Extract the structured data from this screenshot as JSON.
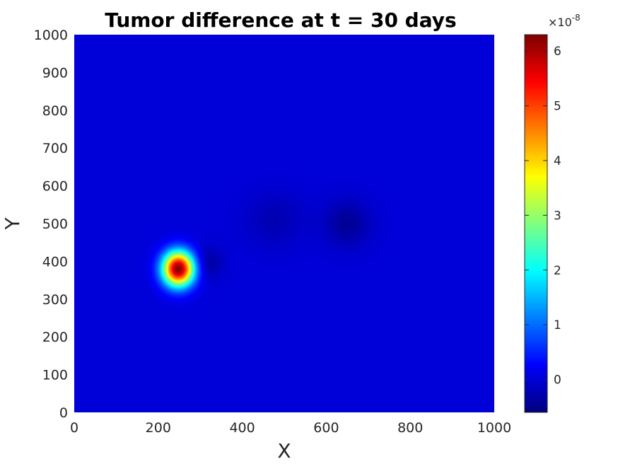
{
  "chart_data": {
    "type": "heatmap",
    "title": "Tumor difference at t = 30 days",
    "xlabel": "X",
    "ylabel": "Y",
    "xlim": [
      0,
      1000
    ],
    "ylim": [
      0,
      1000
    ],
    "x_ticks": [
      "0",
      "200",
      "400",
      "600",
      "800",
      "1000"
    ],
    "y_ticks": [
      "0",
      "100",
      "200",
      "300",
      "400",
      "500",
      "600",
      "700",
      "800",
      "900",
      "1000"
    ],
    "colormap": "jet",
    "background_value": 0,
    "features": [
      {
        "kind": "peak",
        "x": 248,
        "y": 380,
        "value": 6.3e-08
      },
      {
        "kind": "trough",
        "x": 318,
        "y": 395,
        "value": -4e-09
      },
      {
        "kind": "trough",
        "x": 480,
        "y": 510,
        "value": -2.5e-09
      },
      {
        "kind": "trough",
        "x": 650,
        "y": 500,
        "value": -4.5e-09
      }
    ],
    "colorbar": {
      "min": -0.6,
      "max": 6.3,
      "ticks": [
        "0",
        "1",
        "2",
        "3",
        "4",
        "5",
        "6"
      ],
      "exponent_base": "×10",
      "exponent_power": "-8"
    }
  }
}
